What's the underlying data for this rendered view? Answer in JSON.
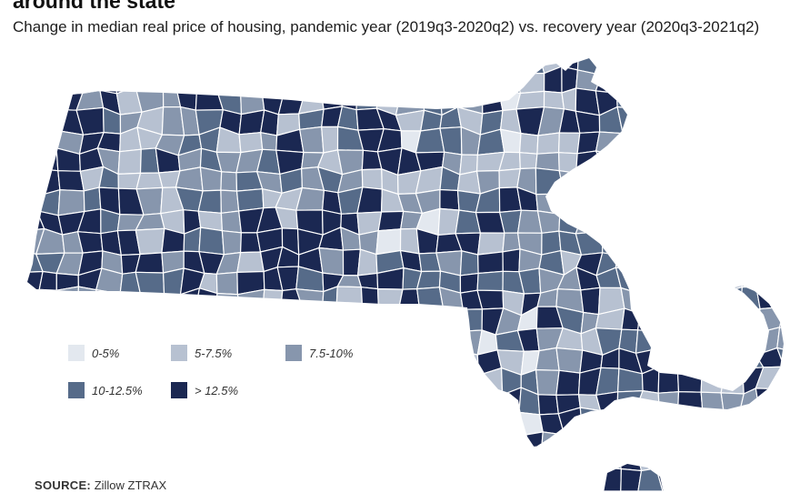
{
  "header": {
    "title": "around the state",
    "subtitle": "Change in median real price of housing, pandemic year (2019q3-2020q2) vs. recovery year (2020q3-2021q2)"
  },
  "legend": {
    "items": [
      {
        "label": "0-5%",
        "color": "#e3e8ef",
        "class": 0
      },
      {
        "label": "5-7.5%",
        "color": "#b7c1d1",
        "class": 1
      },
      {
        "label": "7.5-10%",
        "color": "#8796ad",
        "class": 2
      },
      {
        "label": "10-12.5%",
        "color": "#566b89",
        "class": 3
      },
      {
        "label": "> 12.5%",
        "color": "#1b2852",
        "class": 4
      }
    ]
  },
  "source": {
    "label": "SOURCE:",
    "text": "Zillow ZTRAX"
  },
  "colors": {
    "border": "#ffffff",
    "background": "#ffffff"
  }
}
